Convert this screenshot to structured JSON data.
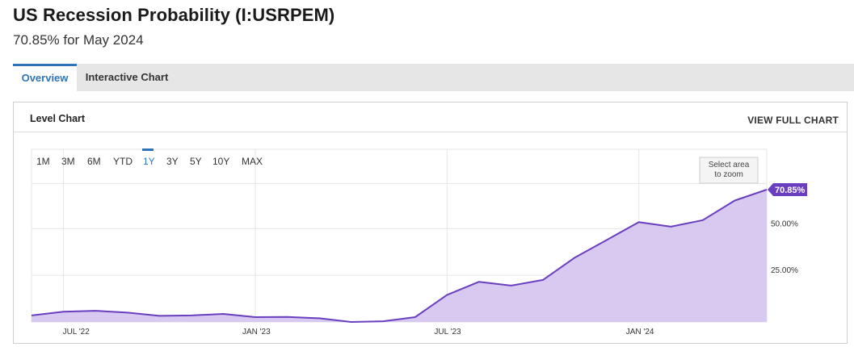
{
  "header": {
    "title": "US Recession Probability (I:USRPEM)",
    "subtitle": "70.85% for May 2024"
  },
  "tabs": [
    {
      "label": "Overview",
      "active": true
    },
    {
      "label": "Interactive Chart",
      "active": false
    }
  ],
  "panel": {
    "title": "Level Chart",
    "full_chart_label": "VIEW FULL CHART"
  },
  "range_buttons": [
    {
      "label": "1M",
      "active": false
    },
    {
      "label": "3M",
      "active": false
    },
    {
      "label": "6M",
      "active": false
    },
    {
      "label": "YTD",
      "active": false
    },
    {
      "label": "1Y",
      "active": true
    },
    {
      "label": "3Y",
      "active": false
    },
    {
      "label": "5Y",
      "active": false
    },
    {
      "label": "10Y",
      "active": false
    },
    {
      "label": "MAX",
      "active": false
    }
  ],
  "zoom_hint": [
    "Select area",
    "to zoom"
  ],
  "chart_data": {
    "type": "area",
    "title": "",
    "xlabel": "",
    "ylabel": "",
    "x_tick_labels": [
      "JUL '22",
      "JAN '23",
      "JUL '23",
      "JAN '24"
    ],
    "y_tick_labels": [
      "25.00%",
      "50.00%"
    ],
    "y_ticks": [
      25,
      50
    ],
    "ylim": [
      0,
      70.85
    ],
    "grid": true,
    "series": [
      {
        "x": [
          "2022-06",
          "2022-07",
          "2022-08",
          "2022-09",
          "2022-10",
          "2022-11",
          "2022-12",
          "2023-01",
          "2023-02",
          "2023-03",
          "2023-04",
          "2023-05",
          "2023-06",
          "2023-07",
          "2023-08",
          "2023-09",
          "2023-10",
          "2023-11",
          "2023-12",
          "2024-01",
          "2024-02",
          "2024-03",
          "2024-04",
          "2024-05"
        ],
        "values": [
          3.5,
          5.5,
          6.0,
          5.0,
          3.3,
          3.5,
          4.3,
          2.6,
          2.7,
          2.0,
          0.0,
          0.4,
          2.6,
          14.5,
          21.5,
          19.5,
          22.5,
          34.5,
          44.0,
          53.5,
          51.0,
          54.5,
          65.0,
          70.85
        ]
      }
    ],
    "last_value_label": "70.85%",
    "colors": {
      "line": "#6a3fbf",
      "fill": "#d8c9f1",
      "badge": "#6a3fbf",
      "grid": "#e4e4e4"
    }
  }
}
